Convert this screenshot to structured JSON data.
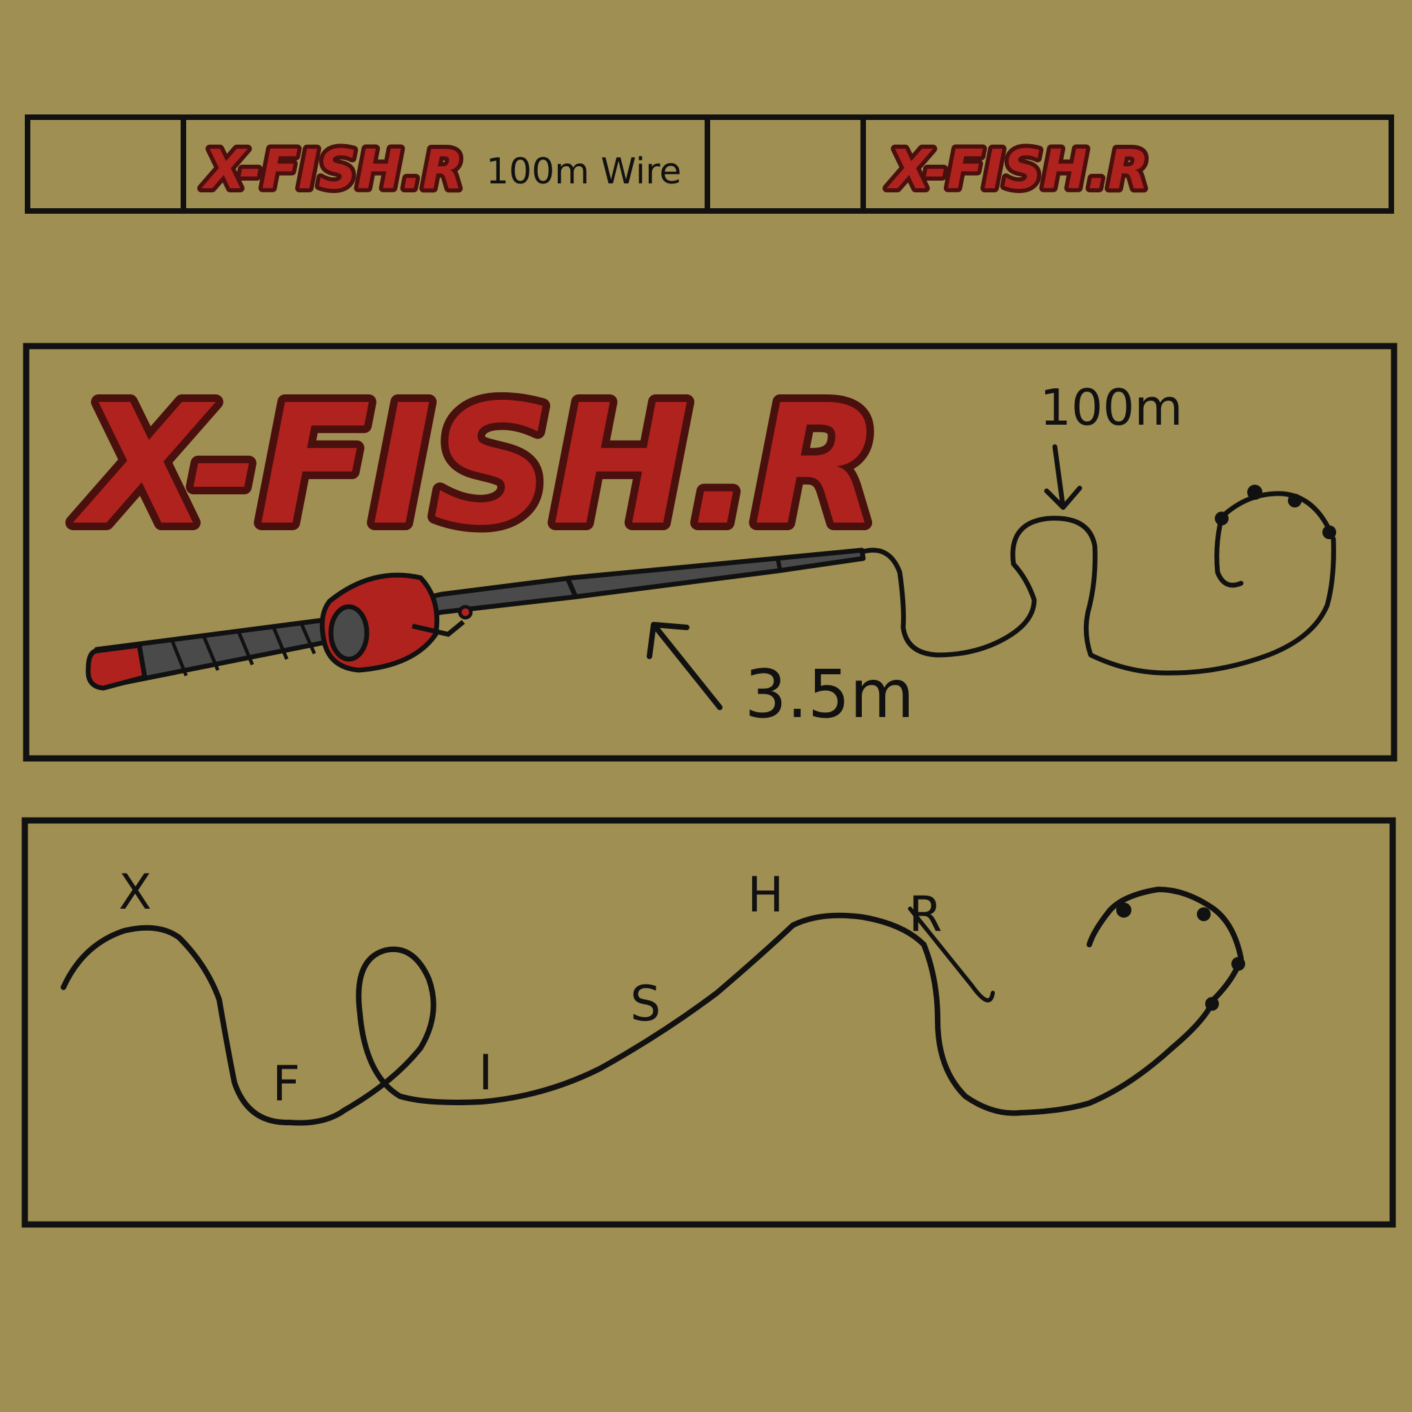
{
  "colors": {
    "background": "#a08f52",
    "ink": "#111111",
    "logo_red": "#b0221e",
    "logo_outline": "#4a100e",
    "rod_gray": "#4a4a4a"
  },
  "label_strip": {
    "panels": [
      {
        "logo": "X-FISH.R",
        "text": "100m Wire"
      },
      {
        "logo": "X-FISH.R",
        "text": ""
      }
    ]
  },
  "product_panel": {
    "logo": "X-FISH.R",
    "rod_length_label": "3.5m",
    "wire_length_label": "100m"
  },
  "wire_panel": {
    "letters": [
      "X",
      "F",
      "I",
      "S",
      "H",
      "R"
    ]
  }
}
